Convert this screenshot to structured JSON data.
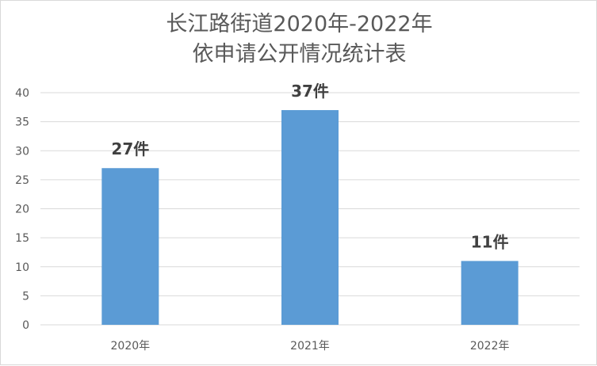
{
  "chart_data": {
    "type": "bar",
    "title": "长江路街道2020年-2022年",
    "subtitle": "依申请公开情况统计表",
    "categories": [
      "2020年",
      "2021年",
      "2022年"
    ],
    "values": [
      27,
      37,
      11
    ],
    "data_labels": [
      "27件",
      "37件",
      "11件"
    ],
    "xlabel": "",
    "ylabel": "",
    "ylim": [
      0,
      40
    ],
    "yticks": [
      0,
      5,
      10,
      15,
      20,
      25,
      30,
      35,
      40
    ],
    "grid": true,
    "legend": "none",
    "bar_color": "#5b9bd5",
    "grid_color": "#d9d9d9"
  }
}
